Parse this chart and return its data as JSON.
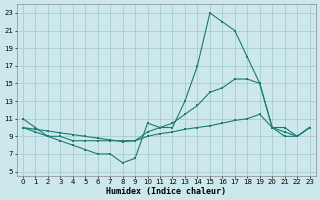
{
  "xlabel": "Humidex (Indice chaleur)",
  "bg_color": "#cce8ec",
  "grid_color": "#aacccc",
  "line_color": "#1a7a72",
  "xlim": [
    -0.5,
    23.5
  ],
  "ylim": [
    4.5,
    24
  ],
  "xticks": [
    0,
    1,
    2,
    3,
    4,
    5,
    6,
    7,
    8,
    9,
    10,
    11,
    12,
    13,
    14,
    15,
    16,
    17,
    18,
    19,
    20,
    21,
    22,
    23
  ],
  "yticks": [
    5,
    7,
    9,
    11,
    13,
    15,
    17,
    19,
    21,
    23
  ],
  "line1_x": [
    0,
    1,
    2,
    3,
    4,
    5,
    6,
    7,
    8,
    9,
    10,
    11,
    12,
    13,
    14,
    15,
    16,
    17,
    18,
    19,
    20,
    21,
    22,
    23
  ],
  "line1_y": [
    11,
    10,
    9,
    8.5,
    8,
    7.5,
    7,
    7,
    6,
    6.5,
    10.5,
    10,
    10,
    13,
    17,
    23,
    22,
    21,
    18,
    15,
    10,
    10,
    9,
    10
  ],
  "line2_x": [
    0,
    1,
    2,
    3,
    4,
    5,
    6,
    7,
    8,
    9,
    10,
    11,
    12,
    13,
    14,
    15,
    16,
    17,
    18,
    19,
    20,
    21,
    22,
    23
  ],
  "line2_y": [
    10,
    9.8,
    9.6,
    9.4,
    9.2,
    9.0,
    8.8,
    8.6,
    8.4,
    8.5,
    9.5,
    10,
    10.5,
    11.5,
    12.5,
    14,
    14.5,
    15.5,
    15.5,
    15,
    10,
    9,
    9,
    10
  ],
  "line3_x": [
    0,
    1,
    2,
    3,
    4,
    5,
    6,
    7,
    8,
    9,
    10,
    11,
    12,
    13,
    14,
    15,
    16,
    17,
    18,
    19,
    20,
    21,
    22,
    23
  ],
  "line3_y": [
    10,
    9.5,
    9,
    9,
    8.5,
    8.5,
    8.5,
    8.5,
    8.5,
    8.5,
    9,
    9.3,
    9.5,
    9.8,
    10,
    10.2,
    10.5,
    10.8,
    11,
    11.5,
    10,
    9.5,
    9,
    10
  ]
}
